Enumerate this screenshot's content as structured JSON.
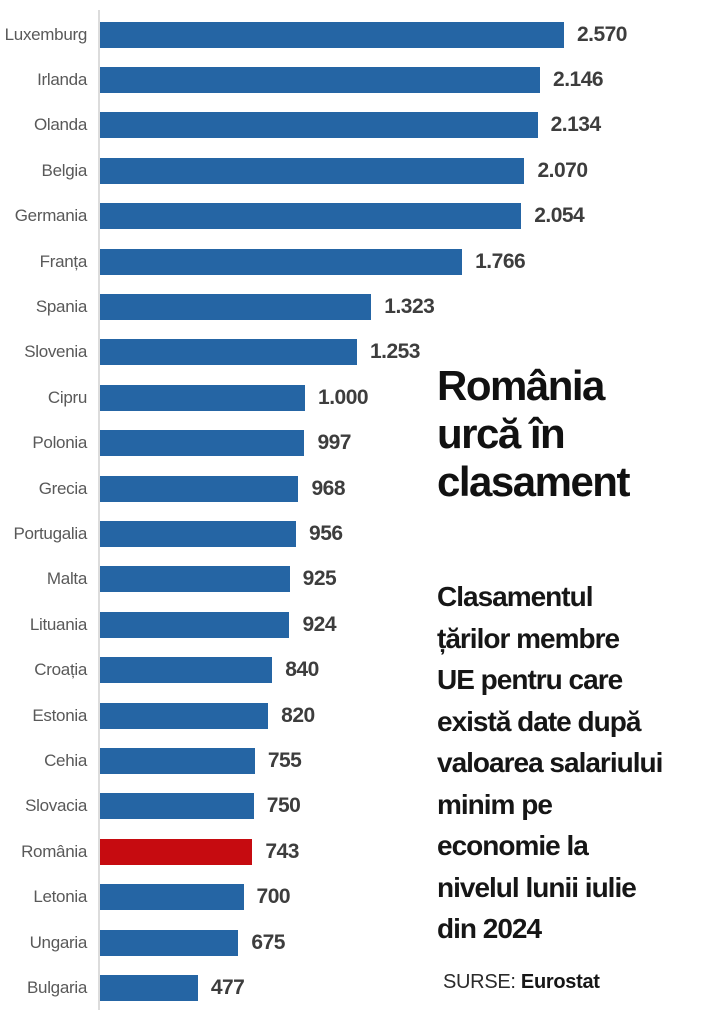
{
  "chart_data": {
    "type": "bar",
    "orientation": "horizontal",
    "title": "România urcă în clasament",
    "xlabel": "",
    "ylabel": "",
    "xlim": [
      0,
      2570
    ],
    "grid": false,
    "legend": false,
    "bar_color": "#2565a4",
    "highlight_color": "#c60b10",
    "categories": [
      "Luxemburg",
      "Irlanda",
      "Olanda",
      "Belgia",
      "Germania",
      "Franța",
      "Spania",
      "Slovenia",
      "Cipru",
      "Polonia",
      "Grecia",
      "Portugalia",
      "Malta",
      "Lituania",
      "Croația",
      "Estonia",
      "Cehia",
      "Slovacia",
      "România",
      "Letonia",
      "Ungaria",
      "Bulgaria"
    ],
    "values": [
      2570,
      2146,
      2134,
      2070,
      2054,
      1766,
      1323,
      1253,
      1000,
      997,
      968,
      956,
      925,
      924,
      840,
      820,
      755,
      750,
      743,
      700,
      675,
      477
    ],
    "items": [
      {
        "label": "Luxemburg",
        "value": 2570,
        "display": "2.570",
        "highlighted": false
      },
      {
        "label": "Irlanda",
        "value": 2146,
        "display": "2.146",
        "highlighted": false
      },
      {
        "label": "Olanda",
        "value": 2134,
        "display": "2.134",
        "highlighted": false
      },
      {
        "label": "Belgia",
        "value": 2070,
        "display": "2.070",
        "highlighted": false
      },
      {
        "label": "Germania",
        "value": 2054,
        "display": "2.054",
        "highlighted": false
      },
      {
        "label": "Franța",
        "value": 1766,
        "display": "1.766",
        "highlighted": false
      },
      {
        "label": "Spania",
        "value": 1323,
        "display": "1.323",
        "highlighted": false
      },
      {
        "label": "Slovenia",
        "value": 1253,
        "display": "1.253",
        "highlighted": false
      },
      {
        "label": "Cipru",
        "value": 1000,
        "display": "1.000",
        "highlighted": false
      },
      {
        "label": "Polonia",
        "value": 997,
        "display": "997",
        "highlighted": false
      },
      {
        "label": "Grecia",
        "value": 968,
        "display": "968",
        "highlighted": false
      },
      {
        "label": "Portugalia",
        "value": 956,
        "display": "956",
        "highlighted": false
      },
      {
        "label": "Malta",
        "value": 925,
        "display": "925",
        "highlighted": false
      },
      {
        "label": "Lituania",
        "value": 924,
        "display": "924",
        "highlighted": false
      },
      {
        "label": "Croația",
        "value": 840,
        "display": "840",
        "highlighted": false
      },
      {
        "label": "Estonia",
        "value": 820,
        "display": "820",
        "highlighted": false
      },
      {
        "label": "Cehia",
        "value": 755,
        "display": "755",
        "highlighted": false
      },
      {
        "label": "Slovacia",
        "value": 750,
        "display": "750",
        "highlighted": false
      },
      {
        "label": "România",
        "value": 743,
        "display": "743",
        "highlighted": true
      },
      {
        "label": "Letonia",
        "value": 700,
        "display": "700",
        "highlighted": false
      },
      {
        "label": "Ungaria",
        "value": 675,
        "display": "675",
        "highlighted": false
      },
      {
        "label": "Bulgaria",
        "value": 477,
        "display": "477",
        "highlighted": false
      }
    ]
  },
  "side": {
    "title": "România\nurcă în\nclasament",
    "description": "Clasamentul\nțărilor membre\nUE pentru care\nexistă date după\nvaloarea salariului\nminim pe\neconomie la\nnivelul lunii iulie\ndin 2024",
    "source_label": "SURSE: ",
    "source_value": "Eurostat"
  }
}
